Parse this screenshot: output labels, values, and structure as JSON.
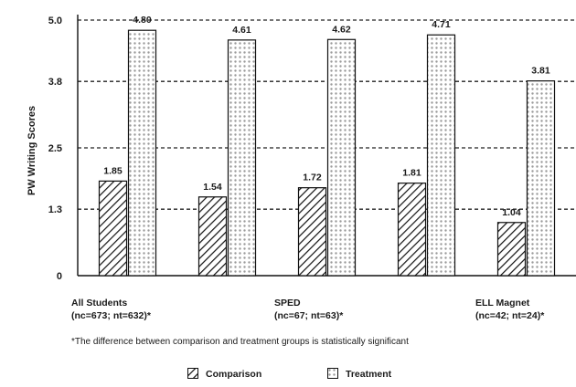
{
  "chart_data": {
    "type": "bar",
    "ylabel": "PW Writing Scores",
    "ylim": [
      0,
      5
    ],
    "yticks": [
      "0",
      "1.3",
      "2.5",
      "3.8",
      "5.0"
    ],
    "grid": true,
    "legend_position": "bottom",
    "categories": [
      "All Students",
      "",
      "SPED",
      "",
      "ELL Magnet"
    ],
    "category_sublabels": [
      "(nc=673; nt=632)*",
      "",
      "(nc=67; nt=63)*",
      "",
      "(nc=42; nt=24)*"
    ],
    "series": [
      {
        "name": "Comparison",
        "values": [
          1.85,
          1.54,
          1.72,
          1.81,
          1.04
        ],
        "labels": [
          "1.85",
          "1.54",
          "1.72",
          "1.81",
          "1.04"
        ]
      },
      {
        "name": "Treatment",
        "values": [
          4.8,
          4.61,
          4.62,
          4.71,
          3.81
        ],
        "labels": [
          "4.80",
          "4.61",
          "4.62",
          "4.71",
          "3.81"
        ]
      }
    ],
    "footnote": "*The difference between comparison and treatment groups is statistically significant"
  }
}
